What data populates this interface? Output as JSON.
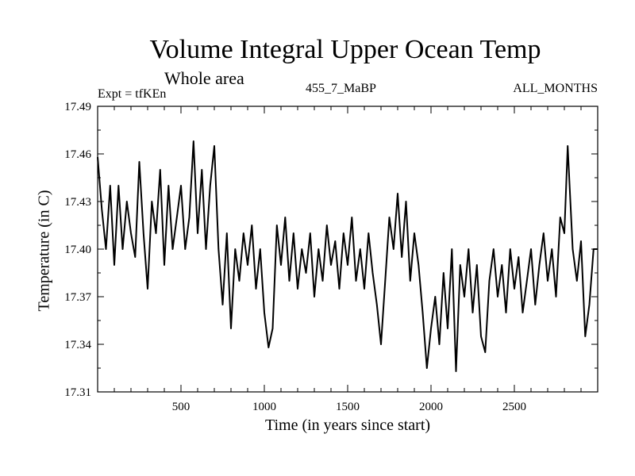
{
  "header": {
    "title": "Volume Integral Upper Ocean Temp",
    "subtitle": "Whole area",
    "experiment": "Expt = tfKEn",
    "run_id": "455_7_MaBP",
    "months": "ALL_MONTHS"
  },
  "chart_data": {
    "type": "line",
    "title": "Volume Integral Upper Ocean Temp",
    "subtitle": "Whole area",
    "xlabel": "Time (in years since start)",
    "ylabel": "Temperature (in C)",
    "xlim": [
      0,
      3000
    ],
    "ylim": [
      17.31,
      17.49
    ],
    "x_ticks": [
      500,
      1000,
      1500,
      2000,
      2500
    ],
    "y_ticks": [
      "17.31",
      "17.34",
      "17.37",
      "17.40",
      "17.43",
      "17.46",
      "17.49"
    ],
    "grid": false,
    "line_color": "#000000",
    "series": [
      {
        "points": [
          [
            0,
            17.458
          ],
          [
            25,
            17.425
          ],
          [
            50,
            17.4
          ],
          [
            75,
            17.44
          ],
          [
            100,
            17.39
          ],
          [
            125,
            17.44
          ],
          [
            150,
            17.4
          ],
          [
            175,
            17.43
          ],
          [
            200,
            17.41
          ],
          [
            225,
            17.395
          ],
          [
            250,
            17.455
          ],
          [
            275,
            17.41
          ],
          [
            300,
            17.375
          ],
          [
            325,
            17.43
          ],
          [
            350,
            17.41
          ],
          [
            375,
            17.45
          ],
          [
            400,
            17.39
          ],
          [
            425,
            17.44
          ],
          [
            450,
            17.4
          ],
          [
            475,
            17.42
          ],
          [
            500,
            17.44
          ],
          [
            525,
            17.4
          ],
          [
            550,
            17.42
          ],
          [
            575,
            17.468
          ],
          [
            600,
            17.41
          ],
          [
            625,
            17.45
          ],
          [
            650,
            17.4
          ],
          [
            675,
            17.44
          ],
          [
            700,
            17.465
          ],
          [
            725,
            17.4
          ],
          [
            750,
            17.365
          ],
          [
            775,
            17.41
          ],
          [
            800,
            17.35
          ],
          [
            825,
            17.4
          ],
          [
            850,
            17.38
          ],
          [
            875,
            17.41
          ],
          [
            900,
            17.39
          ],
          [
            925,
            17.415
          ],
          [
            950,
            17.375
          ],
          [
            975,
            17.4
          ],
          [
            1000,
            17.36
          ],
          [
            1025,
            17.338
          ],
          [
            1050,
            17.35
          ],
          [
            1075,
            17.415
          ],
          [
            1100,
            17.39
          ],
          [
            1125,
            17.42
          ],
          [
            1150,
            17.38
          ],
          [
            1175,
            17.41
          ],
          [
            1200,
            17.375
          ],
          [
            1225,
            17.4
          ],
          [
            1250,
            17.385
          ],
          [
            1275,
            17.41
          ],
          [
            1300,
            17.37
          ],
          [
            1325,
            17.4
          ],
          [
            1350,
            17.38
          ],
          [
            1375,
            17.415
          ],
          [
            1400,
            17.39
          ],
          [
            1425,
            17.405
          ],
          [
            1450,
            17.375
          ],
          [
            1475,
            17.41
          ],
          [
            1500,
            17.39
          ],
          [
            1525,
            17.42
          ],
          [
            1550,
            17.38
          ],
          [
            1575,
            17.4
          ],
          [
            1600,
            17.375
          ],
          [
            1625,
            17.41
          ],
          [
            1650,
            17.385
          ],
          [
            1675,
            17.365
          ],
          [
            1700,
            17.34
          ],
          [
            1725,
            17.38
          ],
          [
            1750,
            17.42
          ],
          [
            1775,
            17.4
          ],
          [
            1800,
            17.435
          ],
          [
            1825,
            17.395
          ],
          [
            1850,
            17.43
          ],
          [
            1875,
            17.38
          ],
          [
            1900,
            17.41
          ],
          [
            1925,
            17.39
          ],
          [
            1950,
            17.36
          ],
          [
            1975,
            17.325
          ],
          [
            2000,
            17.35
          ],
          [
            2025,
            17.37
          ],
          [
            2050,
            17.34
          ],
          [
            2075,
            17.385
          ],
          [
            2100,
            17.35
          ],
          [
            2125,
            17.4
          ],
          [
            2150,
            17.323
          ],
          [
            2175,
            17.39
          ],
          [
            2200,
            17.37
          ],
          [
            2225,
            17.4
          ],
          [
            2250,
            17.36
          ],
          [
            2275,
            17.39
          ],
          [
            2300,
            17.345
          ],
          [
            2325,
            17.335
          ],
          [
            2350,
            17.38
          ],
          [
            2375,
            17.4
          ],
          [
            2400,
            17.37
          ],
          [
            2425,
            17.39
          ],
          [
            2450,
            17.36
          ],
          [
            2475,
            17.4
          ],
          [
            2500,
            17.375
          ],
          [
            2525,
            17.395
          ],
          [
            2550,
            17.36
          ],
          [
            2575,
            17.38
          ],
          [
            2600,
            17.4
          ],
          [
            2625,
            17.365
          ],
          [
            2650,
            17.39
          ],
          [
            2675,
            17.41
          ],
          [
            2700,
            17.38
          ],
          [
            2725,
            17.4
          ],
          [
            2750,
            17.37
          ],
          [
            2775,
            17.42
          ],
          [
            2800,
            17.41
          ],
          [
            2820,
            17.465
          ],
          [
            2850,
            17.4
          ],
          [
            2875,
            17.38
          ],
          [
            2900,
            17.405
          ],
          [
            2925,
            17.345
          ],
          [
            2950,
            17.365
          ],
          [
            2975,
            17.4
          ],
          [
            3000,
            17.4
          ]
        ]
      }
    ]
  }
}
